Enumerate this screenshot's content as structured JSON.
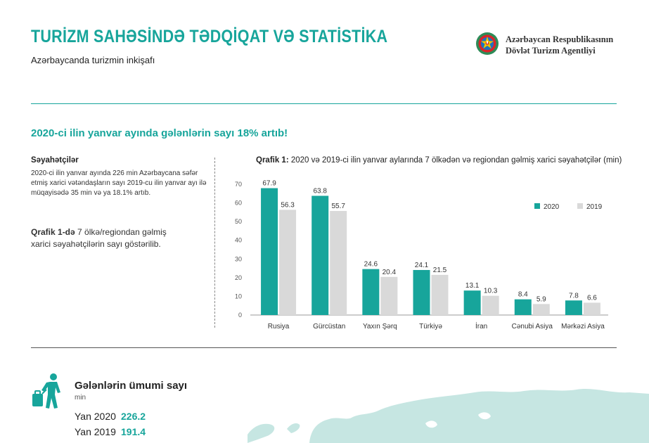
{
  "header": {
    "title": "TURİZM SAHƏSİNDƏ TƏDQİQAT VƏ STATİSTİKA",
    "subtitle": "Azərbaycanda turizmin inkişafı",
    "agency_line1": "Azərbaycan Respublikasının",
    "agency_line2": "Dövlət Turizm Agentliyi"
  },
  "headline": "2020-ci ilin yanvar ayında gələnlərin sayı 18% artıb!",
  "sidebar": {
    "section_title": "Səyahətçilər",
    "text": "2020-ci ilin yanvar ayında 226 min Azərbaycana səfər etmiş xarici vətəndaşların sayı 2019-cu ilin yanvar ayı ilə müqayisədə 35 min və ya 18.1% artıb.",
    "note_bold": "Qrafik 1-də",
    "note_rest": " 7 ölkə/regiondan gəlmiş xarici səyahətçilərin sayı göstərilib."
  },
  "chart_caption": {
    "bold": "Qrafik 1:",
    "rest": " 2020 və 2019-ci ilin yanvar aylarında 7 ölkədən və regiondan gəlmiş xarici səyahətçilər (min)"
  },
  "chart_data": {
    "type": "bar",
    "title": "",
    "categories": [
      "Rusiya",
      "Gürcüstan",
      "Yaxın Şərq",
      "Türkiyə",
      "İran",
      "Cənubi Asiya",
      "Mərkəzi Asiya"
    ],
    "series": [
      {
        "name": "2020",
        "color": "#17a59b",
        "values": [
          67.9,
          63.8,
          24.6,
          24.1,
          13.1,
          8.4,
          7.8
        ]
      },
      {
        "name": "2019",
        "color": "#d9d9d9",
        "values": [
          56.3,
          55.7,
          20.4,
          21.5,
          10.3,
          5.9,
          6.6
        ]
      }
    ],
    "ylim": [
      0,
      70
    ],
    "yticks": [
      0,
      10,
      20,
      30,
      40,
      50,
      60,
      70
    ],
    "grid": false,
    "legend": "top-right",
    "xlabel": "",
    "ylabel": ""
  },
  "totals": {
    "title": "Gələnlərin ümumi sayı",
    "unit": "min",
    "rows": [
      {
        "label": "Yan 2020",
        "value": "226.2"
      },
      {
        "label": "Yan 2019",
        "value": "191.4"
      }
    ]
  },
  "colors": {
    "accent": "#17a59b",
    "bar_2019": "#d9d9d9"
  },
  "icons": [
    "state-emblem-icon",
    "traveler-luggage-icon",
    "world-map-icon"
  ]
}
